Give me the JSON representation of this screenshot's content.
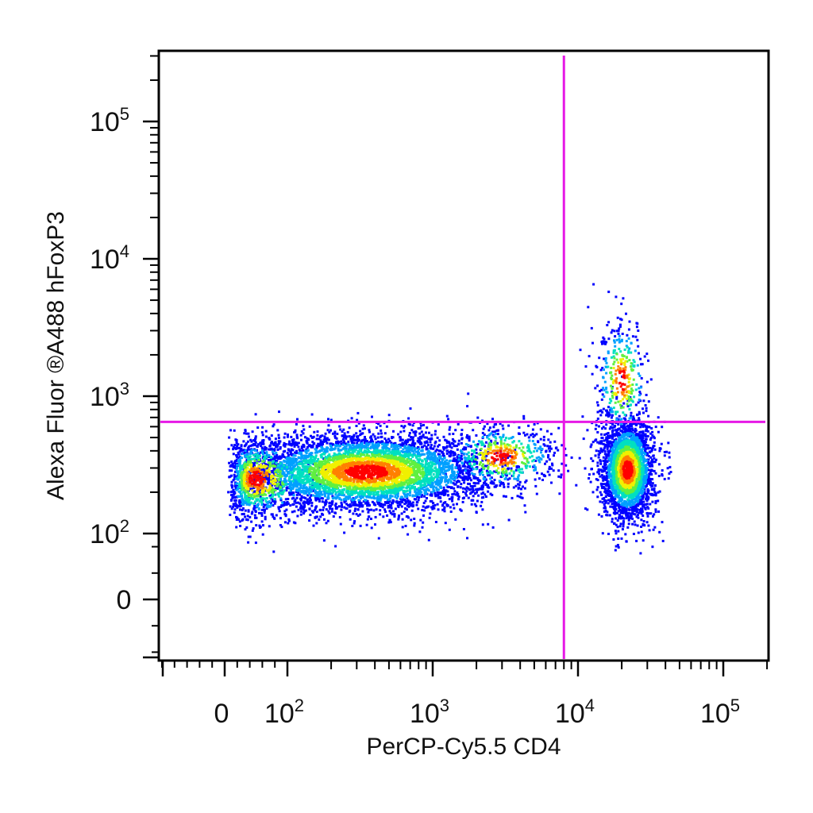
{
  "chart_data": {
    "type": "scatter",
    "subtype": "flow cytometry pseudocolor dot plot",
    "xlabel": "PerCP-Cy5.5 CD4",
    "ylabel": "Alexa Fluor ®A488 hFoxP3",
    "x_scale": "biexponential",
    "y_scale": "biexponential",
    "xticks": [
      {
        "base": "0",
        "exp": "",
        "value": 0
      },
      {
        "base": "10",
        "exp": "2",
        "value": 100
      },
      {
        "base": "10",
        "exp": "3",
        "value": 1000
      },
      {
        "base": "10",
        "exp": "4",
        "value": 10000
      },
      {
        "base": "10",
        "exp": "5",
        "value": 100000
      }
    ],
    "yticks": [
      {
        "base": "0",
        "exp": "",
        "value": 0
      },
      {
        "base": "10",
        "exp": "2",
        "value": 100
      },
      {
        "base": "10",
        "exp": "3",
        "value": 1000
      },
      {
        "base": "10",
        "exp": "4",
        "value": 10000
      },
      {
        "base": "10",
        "exp": "5",
        "value": 100000
      }
    ],
    "xlim": [
      -300,
      260000
    ],
    "ylim": [
      -300,
      260000
    ],
    "gates": {
      "color": "#e619e6",
      "vertical_x": 8000,
      "horizontal_y": 650
    },
    "density_colors": [
      "#0000ff",
      "#00a0ff",
      "#00e0c0",
      "#60f040",
      "#f0f000",
      "#ff8000",
      "#ff0000"
    ],
    "populations": [
      {
        "x_center": 350,
        "y_center": 280,
        "x_spread_log": 0.42,
        "y_spread_log": 0.14,
        "count": 5200
      },
      {
        "x_center": 22000,
        "y_center": 290,
        "x_spread_log": 0.09,
        "y_spread_log": 0.18,
        "count": 2600
      },
      {
        "x_center": 3000,
        "y_center": 360,
        "x_spread_log": 0.2,
        "y_spread_log": 0.12,
        "count": 500
      },
      {
        "x_center": 20000,
        "y_center": 1300,
        "x_spread_log": 0.09,
        "y_spread_log": 0.22,
        "count": 350
      },
      {
        "x_center": 50,
        "y_center": 250,
        "x_spread_log": 0.3,
        "y_spread_log": 0.15,
        "count": 900
      }
    ]
  }
}
